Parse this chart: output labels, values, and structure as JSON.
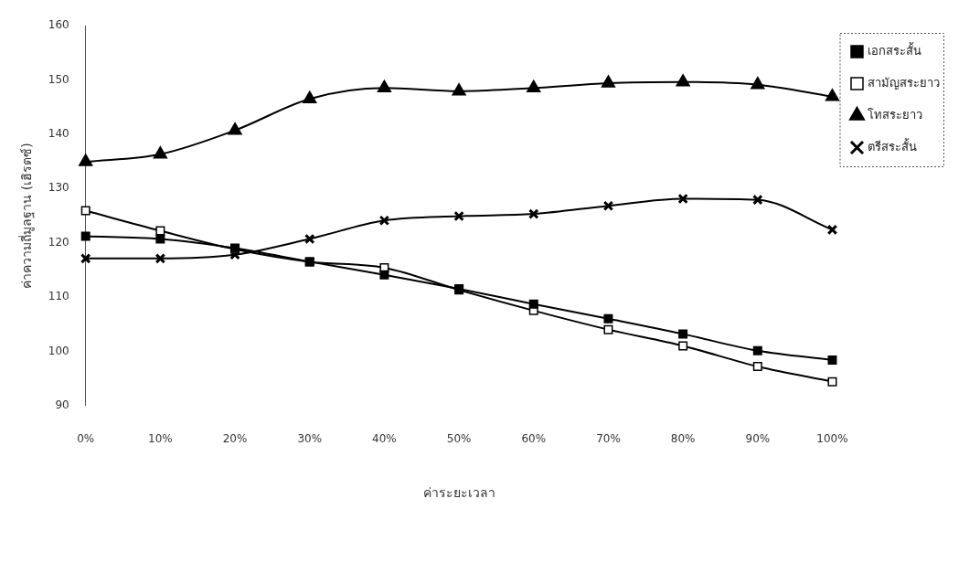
{
  "chart_data": {
    "type": "line",
    "xlabel": "ค่าระยะเวลา",
    "ylabel": "ค่าความถี่มูลฐาน (เฮิรตซ์)",
    "categories": [
      "0%",
      "10%",
      "20%",
      "30%",
      "40%",
      "50%",
      "60%",
      "70%",
      "80%",
      "90%",
      "100%"
    ],
    "series": [
      {
        "name": "เอกสระสั้น",
        "color": "#000000",
        "marker": "square",
        "values": [
          121.2,
          120.7,
          119.0,
          116.5,
          114.1,
          111.5,
          108.7,
          106.0,
          103.2,
          100.1,
          98.4
        ]
      },
      {
        "name": "สามัญสระยาว",
        "color": "#000000",
        "marker": "square-open",
        "values": [
          125.9,
          122.2,
          118.8,
          116.5,
          115.4,
          111.3,
          107.5,
          104.0,
          101.0,
          97.2,
          94.4
        ]
      },
      {
        "name": "โทสระยาว",
        "color": "#000000",
        "marker": "triangle",
        "values": [
          134.9,
          136.3,
          140.7,
          146.5,
          148.5,
          147.9,
          148.5,
          149.4,
          149.6,
          149.1,
          146.9
        ]
      },
      {
        "name": "ตรีสระสั้น",
        "color": "#000000",
        "marker": "cross",
        "values": [
          117.1,
          117.1,
          117.8,
          120.7,
          124.1,
          124.9,
          125.3,
          126.8,
          128.1,
          127.9,
          122.4
        ]
      }
    ],
    "ylim": [
      90,
      160
    ],
    "yticks": [
      90,
      100,
      110,
      120,
      130,
      140,
      150,
      160
    ],
    "grid": false,
    "legend": "right",
    "line_style": "solid"
  }
}
